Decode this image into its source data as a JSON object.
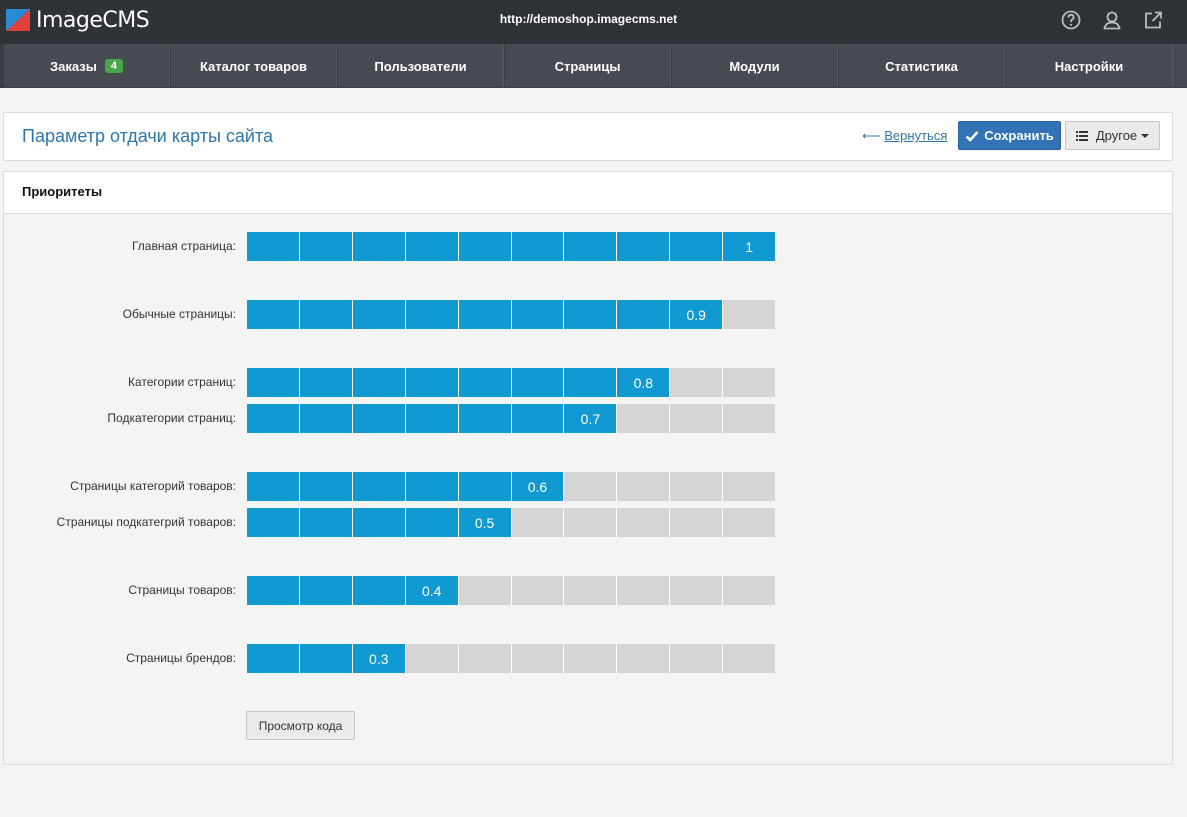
{
  "app": {
    "logo_text": "ImageCMS",
    "url": "http://demoshop.imagecms.net"
  },
  "nav": [
    {
      "label": "Заказы",
      "badge": "4"
    },
    {
      "label": "Каталог товаров"
    },
    {
      "label": "Пользователи"
    },
    {
      "label": "Страницы"
    },
    {
      "label": "Модули"
    },
    {
      "label": "Статистика"
    },
    {
      "label": "Настройки"
    }
  ],
  "header": {
    "title": "Параметр отдачи карты сайта",
    "back_arrow": "⟵",
    "back_label": "Вернуться",
    "save_label": "Сохранить",
    "other_label": "Другое"
  },
  "panel": {
    "title": "Приоритеты",
    "view_code_label": "Просмотр кода"
  },
  "priorities": [
    {
      "label": "Главная страница:",
      "value": "1"
    },
    {
      "label": "Обычные страницы:",
      "value": "0.9"
    },
    {
      "label": "Категории страниц:",
      "value": "0.8"
    },
    {
      "label": "Подкатегории страниц:",
      "value": "0.7"
    },
    {
      "label": "Страницы категорий товаров:",
      "value": "0.6"
    },
    {
      "label": "Страницы подкатегрий товаров:",
      "value": "0.5"
    },
    {
      "label": "Страницы товаров:",
      "value": "0.4"
    },
    {
      "label": "Страницы брендов:",
      "value": "0.3"
    }
  ],
  "colors": {
    "accent": "#119ad1",
    "inactive": "#d5d5d5",
    "primary_button": "#3173b5",
    "badge": "#46a546"
  },
  "icons": {
    "help": "help-icon",
    "user": "user-icon",
    "external": "external-link-icon"
  }
}
